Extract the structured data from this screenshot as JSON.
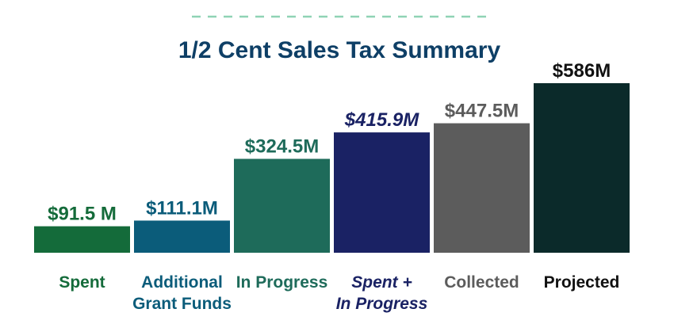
{
  "colors": {
    "title": "#0e3f66",
    "divider": "#8fd3b5"
  },
  "chart_data": {
    "type": "bar",
    "title": "1/2 Cent Sales Tax Summary",
    "unit": "$M",
    "ylim": [
      0,
      600
    ],
    "grid": false,
    "categories": [
      {
        "lines": [
          "Spent"
        ],
        "italic": false
      },
      {
        "lines": [
          "Additional",
          "Grant Funds"
        ],
        "italic": false
      },
      {
        "lines": [
          "In Progress"
        ],
        "italic": false
      },
      {
        "lines": [
          "Spent +",
          "In Progress"
        ],
        "italic": true
      },
      {
        "lines": [
          "Collected"
        ],
        "italic": false
      },
      {
        "lines": [
          "Projected"
        ],
        "italic": false
      }
    ],
    "values": [
      91.5,
      111.1,
      324.5,
      415.9,
      447.5,
      586
    ],
    "value_labels": [
      "$91.5 M",
      "$111.1M",
      "$324.5M",
      "$415.9M",
      "$447.5M",
      "$586M"
    ],
    "bar_colors": [
      "#146b3a",
      "#0b5c7a",
      "#1e6b5a",
      "#1a2264",
      "#5c5c5c",
      "#0b2a2a"
    ],
    "label_colors": [
      "#146b3a",
      "#0b5c7a",
      "#1e6b5a",
      "#1a2264",
      "#5c5c5c",
      "#111111"
    ]
  }
}
